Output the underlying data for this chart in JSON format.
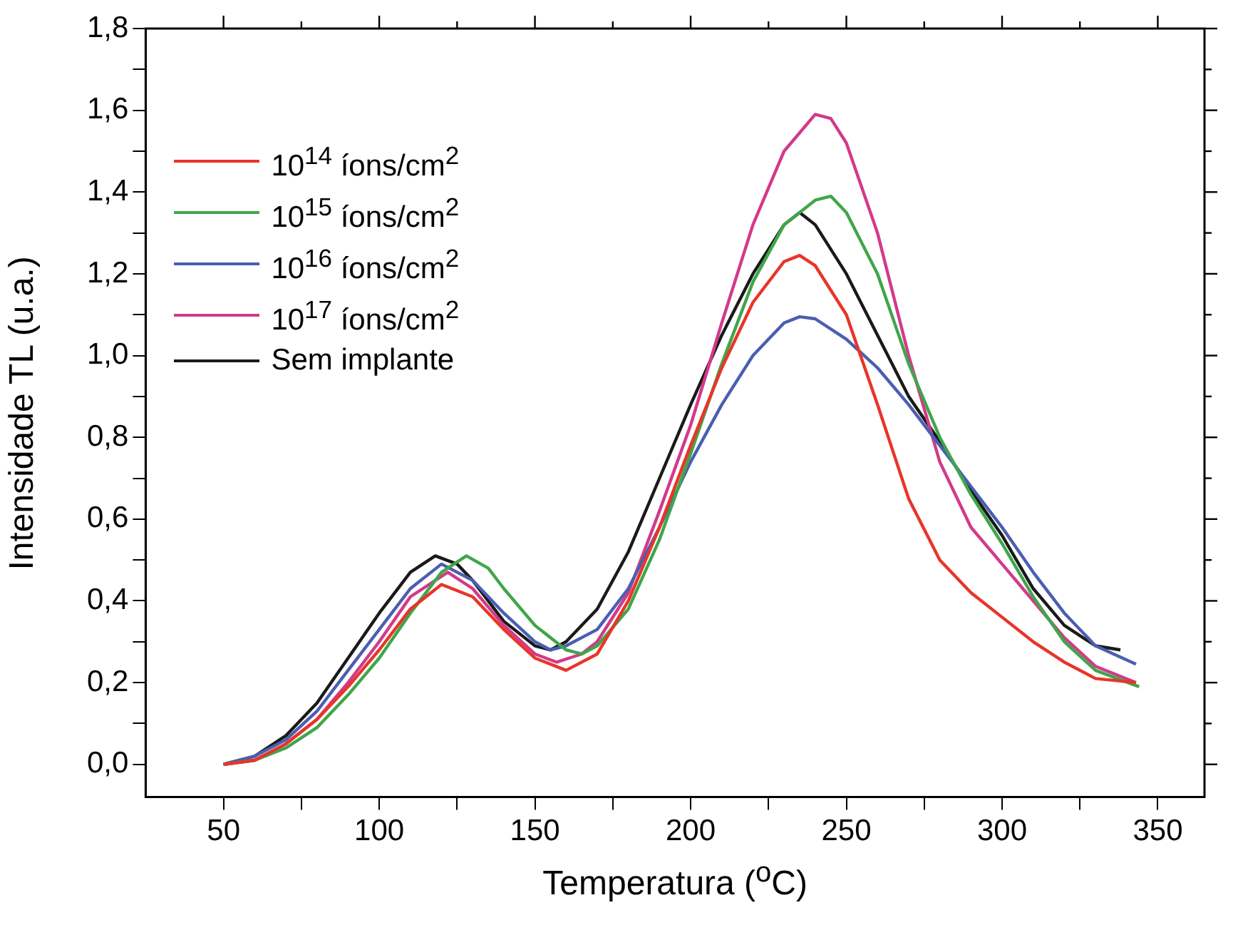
{
  "chart_data": {
    "type": "line",
    "xlabel": "Temperatura ($^{o}$C)",
    "ylabel": "Intensidade TL (u.a.)",
    "xlim": [
      25,
      365
    ],
    "ylim": [
      -0.08,
      1.8
    ],
    "xticks": [
      50,
      {
        "value": 75,
        "label": null
      },
      100,
      {
        "value": 125,
        "label": null
      },
      150,
      {
        "value": 175,
        "label": null
      },
      200,
      {
        "value": 225,
        "label": null
      },
      250,
      {
        "value": 275,
        "label": null
      },
      300,
      {
        "value": 325,
        "label": null
      },
      350
    ],
    "yticks": [
      {
        "value": 0,
        "label": "0,0"
      },
      {
        "value": 0.1,
        "label": null
      },
      {
        "value": 0.2,
        "label": "0,2"
      },
      {
        "value": 0.3,
        "label": null
      },
      {
        "value": 0.4,
        "label": "0,4"
      },
      {
        "value": 0.5,
        "label": null
      },
      {
        "value": 0.6,
        "label": "0,6"
      },
      {
        "value": 0.7,
        "label": null
      },
      {
        "value": 0.8,
        "label": "0,8"
      },
      {
        "value": 0.9,
        "label": null
      },
      {
        "value": 1.0,
        "label": "1,0"
      },
      {
        "value": 1.1,
        "label": null
      },
      {
        "value": 1.2,
        "label": "1,2"
      },
      {
        "value": 1.3,
        "label": null
      },
      {
        "value": 1.4,
        "label": "1,4"
      },
      {
        "value": 1.5,
        "label": null
      },
      {
        "value": 1.6,
        "label": "1,6"
      },
      {
        "value": 1.7,
        "label": null
      },
      {
        "value": 1.8,
        "label": "1,8"
      }
    ],
    "grid": false,
    "legend": "top left",
    "marker": "none",
    "line_style": "solid",
    "series": [
      {
        "name": "10$^{14}$ íons/cm$^{2}$",
        "color": "#e8352a",
        "x": [
          50,
          60,
          70,
          80,
          90,
          100,
          110,
          120,
          130,
          140,
          150,
          160,
          170,
          180,
          190,
          200,
          210,
          220,
          230,
          235,
          240,
          250,
          260,
          270,
          280,
          290,
          300,
          310,
          320,
          330,
          343
        ],
        "values": [
          0,
          0.01,
          0.05,
          0.11,
          0.19,
          0.28,
          0.38,
          0.44,
          0.41,
          0.33,
          0.26,
          0.23,
          0.27,
          0.4,
          0.58,
          0.78,
          0.97,
          1.13,
          1.23,
          1.245,
          1.22,
          1.1,
          0.88,
          0.65,
          0.5,
          0.42,
          0.36,
          0.3,
          0.25,
          0.21,
          0.2
        ]
      },
      {
        "name": "10$^{15}$ íons/cm$^{2}$",
        "color": "#3fa64a",
        "x": [
          50,
          60,
          70,
          80,
          90,
          100,
          110,
          120,
          128,
          135,
          140,
          150,
          160,
          165,
          170,
          180,
          190,
          200,
          210,
          220,
          230,
          240,
          245,
          250,
          260,
          270,
          280,
          290,
          300,
          310,
          320,
          330,
          344
        ],
        "values": [
          0,
          0.01,
          0.04,
          0.09,
          0.17,
          0.26,
          0.37,
          0.47,
          0.51,
          0.48,
          0.43,
          0.34,
          0.28,
          0.27,
          0.29,
          0.38,
          0.55,
          0.76,
          0.98,
          1.18,
          1.32,
          1.38,
          1.39,
          1.35,
          1.2,
          0.98,
          0.8,
          0.66,
          0.54,
          0.41,
          0.3,
          0.23,
          0.19
        ]
      },
      {
        "name": "10$^{16}$ íons/cm$^{2}$",
        "color": "#4a5fb0",
        "x": [
          50,
          60,
          70,
          80,
          90,
          100,
          110,
          120,
          130,
          140,
          150,
          155,
          160,
          170,
          180,
          190,
          200,
          210,
          220,
          230,
          235,
          240,
          250,
          260,
          270,
          280,
          290,
          300,
          310,
          320,
          330,
          343
        ],
        "values": [
          0,
          0.02,
          0.06,
          0.13,
          0.23,
          0.33,
          0.43,
          0.49,
          0.45,
          0.37,
          0.3,
          0.28,
          0.29,
          0.33,
          0.43,
          0.58,
          0.74,
          0.88,
          1.0,
          1.08,
          1.095,
          1.09,
          1.04,
          0.97,
          0.88,
          0.78,
          0.68,
          0.58,
          0.47,
          0.37,
          0.29,
          0.245
        ]
      },
      {
        "name": "10$^{17}$ íons/cm$^{2}$",
        "color": "#d23a8a",
        "x": [
          50,
          60,
          70,
          80,
          90,
          100,
          110,
          122,
          130,
          140,
          150,
          157,
          165,
          170,
          180,
          190,
          200,
          210,
          220,
          230,
          240,
          245,
          250,
          260,
          270,
          280,
          290,
          300,
          310,
          320,
          330,
          343
        ],
        "values": [
          0,
          0.01,
          0.05,
          0.11,
          0.2,
          0.3,
          0.41,
          0.47,
          0.43,
          0.34,
          0.27,
          0.25,
          0.27,
          0.3,
          0.42,
          0.62,
          0.83,
          1.08,
          1.32,
          1.5,
          1.59,
          1.58,
          1.52,
          1.3,
          1.0,
          0.74,
          0.58,
          0.49,
          0.4,
          0.31,
          0.24,
          0.2
        ]
      },
      {
        "name": "Sem implante",
        "color": "#1a1a1a",
        "x": [
          50,
          60,
          70,
          80,
          90,
          100,
          110,
          118,
          125,
          130,
          140,
          150,
          155,
          160,
          170,
          180,
          190,
          200,
          210,
          220,
          230,
          235,
          240,
          250,
          260,
          270,
          280,
          290,
          300,
          310,
          320,
          330,
          338
        ],
        "values": [
          0,
          0.02,
          0.07,
          0.15,
          0.26,
          0.37,
          0.47,
          0.51,
          0.49,
          0.45,
          0.35,
          0.29,
          0.28,
          0.3,
          0.38,
          0.52,
          0.7,
          0.88,
          1.05,
          1.2,
          1.32,
          1.35,
          1.32,
          1.2,
          1.05,
          0.9,
          0.79,
          0.67,
          0.56,
          0.43,
          0.34,
          0.29,
          0.28
        ]
      }
    ]
  }
}
